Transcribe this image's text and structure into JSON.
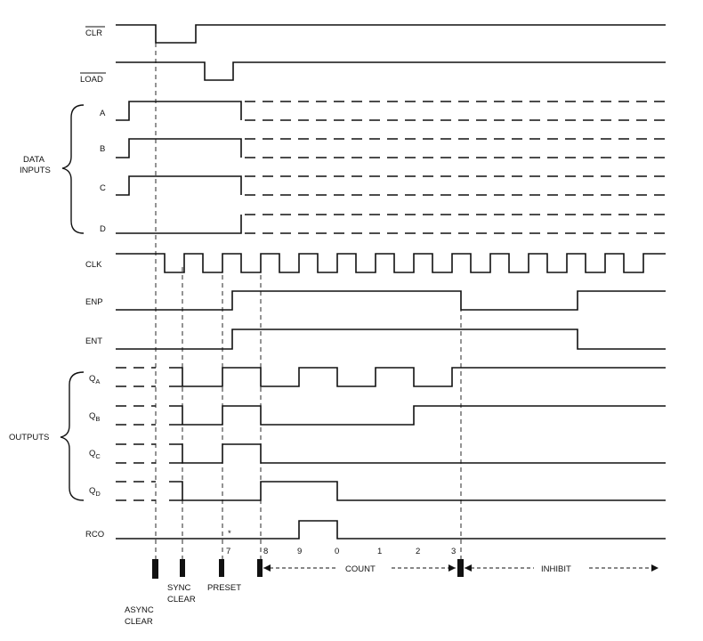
{
  "signals": {
    "clr": "CLR",
    "load": "LOAD",
    "a": "A",
    "b": "B",
    "c": "C",
    "d": "D",
    "clk": "CLK",
    "enp": "ENP",
    "ent": "ENT",
    "qa_main": "Q",
    "qa_sub": "A",
    "qb_main": "Q",
    "qb_sub": "B",
    "qc_main": "Q",
    "qc_sub": "C",
    "qd_main": "Q",
    "qd_sub": "D",
    "rco": "RCO"
  },
  "groups": {
    "data_inputs_line1": "DATA",
    "data_inputs_line2": "INPUTS",
    "outputs": "OUTPUTS"
  },
  "count_labels": [
    "7",
    "8",
    "9",
    "0",
    "1",
    "2",
    "3"
  ],
  "star": "*",
  "phases": {
    "async_line1": "ASYNC",
    "async_line2": "CLEAR",
    "sync_line1": "SYNC",
    "sync_line2": "CLEAR",
    "preset": "PRESET",
    "count": "COUNT",
    "inhibit": "INHIBIT"
  }
}
